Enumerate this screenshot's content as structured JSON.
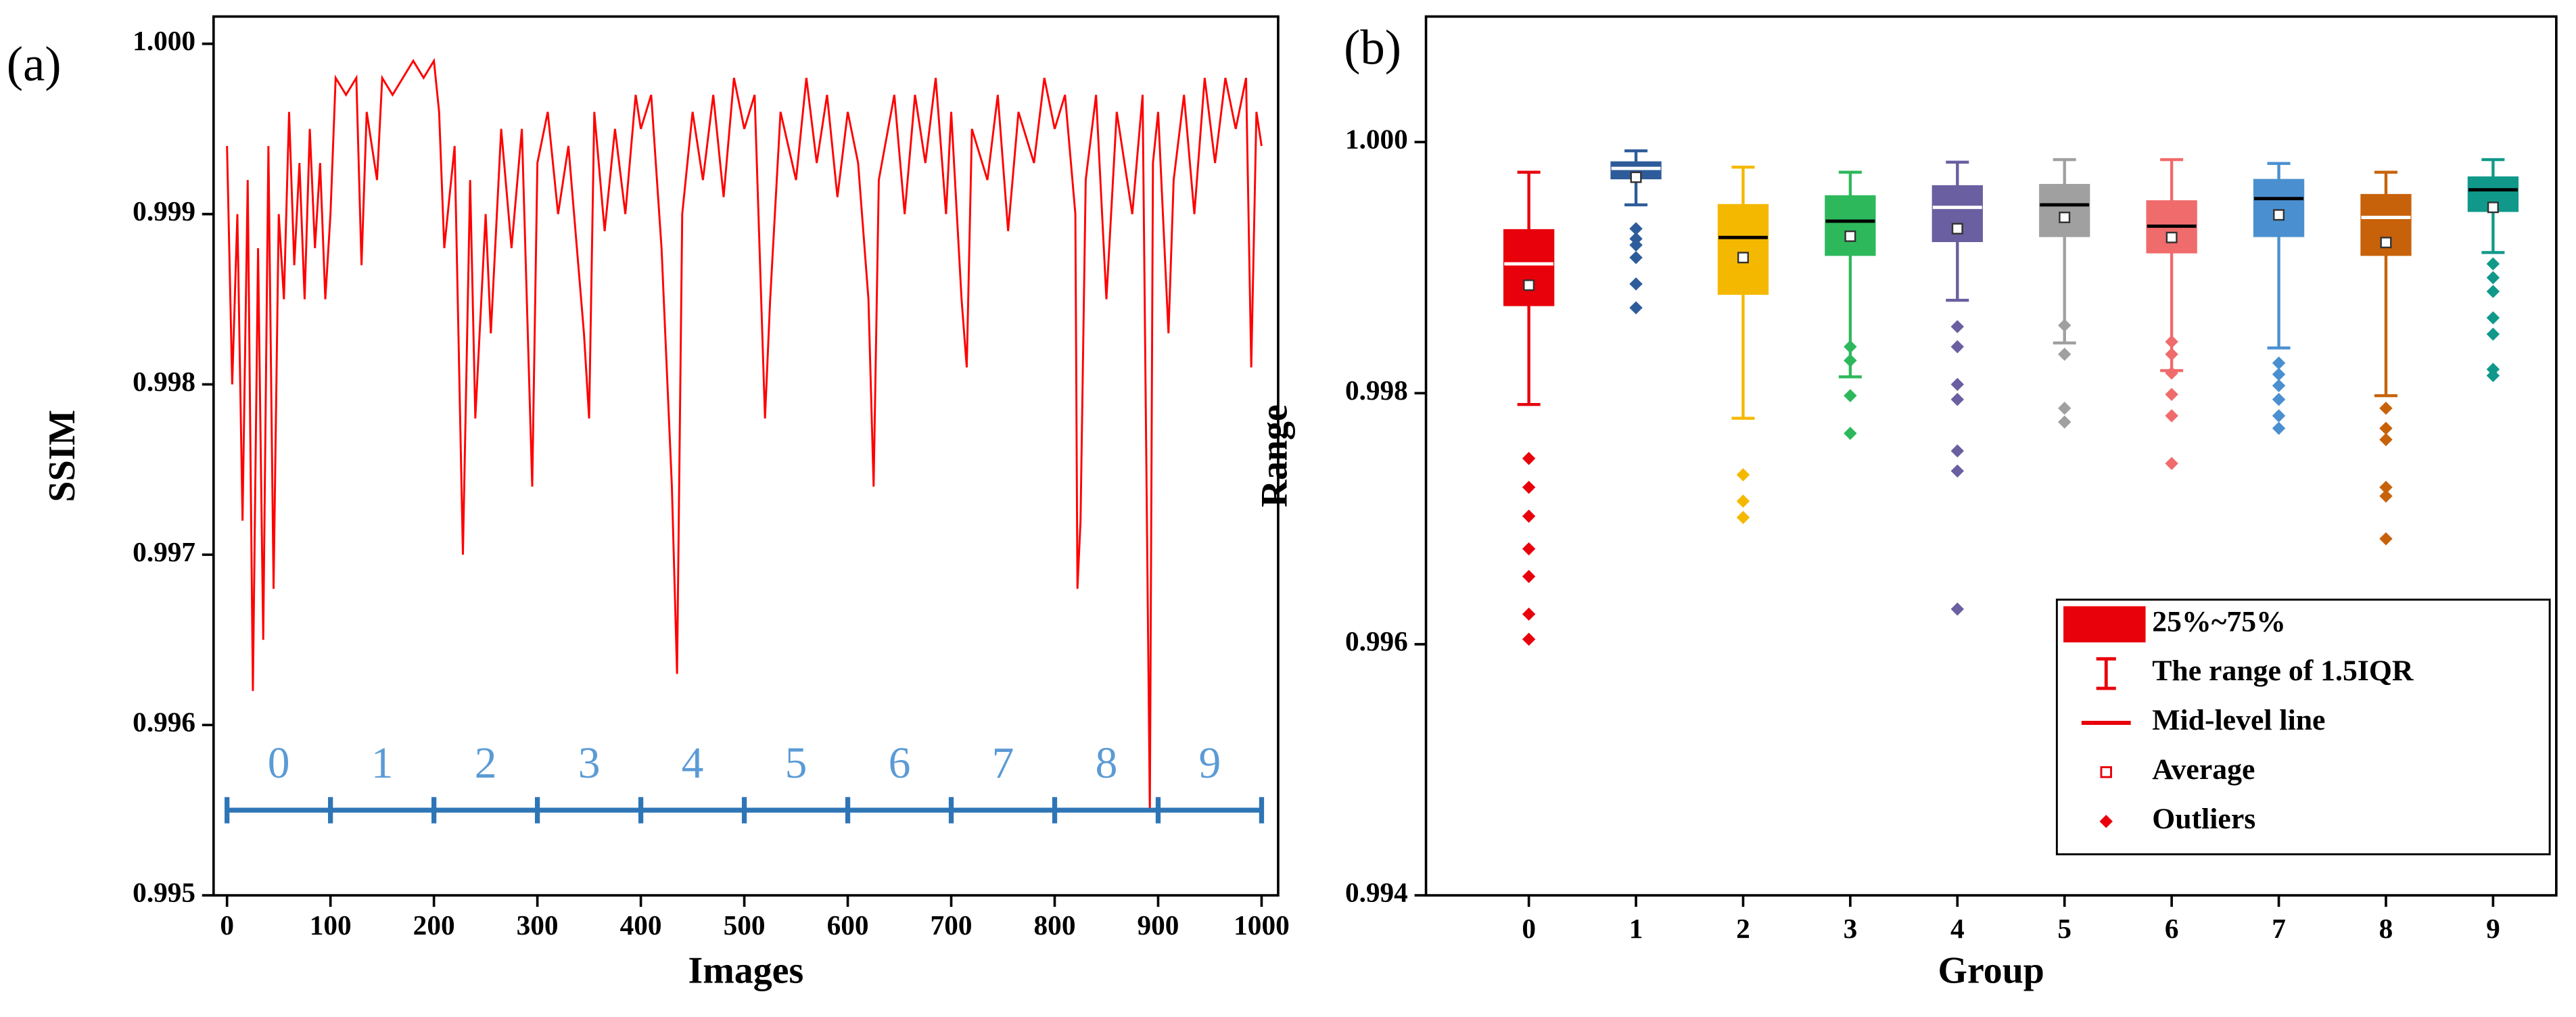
{
  "chart_data": [
    {
      "type": "line",
      "panel": "(a)",
      "x_label": "Images",
      "y_label": "SSIM",
      "color": "#ff0000",
      "x": [
        0,
        5,
        10,
        15,
        20,
        25,
        30,
        35,
        40,
        45,
        50,
        55,
        60,
        65,
        70,
        75,
        80,
        85,
        90,
        95,
        100,
        105,
        115,
        125,
        130,
        135,
        145,
        150,
        160,
        170,
        180,
        190,
        200,
        205,
        210,
        220,
        228,
        235,
        240,
        250,
        255,
        265,
        275,
        285,
        295,
        300,
        310,
        320,
        330,
        345,
        350,
        355,
        365,
        375,
        385,
        395,
        400,
        410,
        420,
        430,
        435,
        440,
        450,
        460,
        470,
        480,
        490,
        500,
        510,
        520,
        525,
        535,
        550,
        560,
        570,
        580,
        590,
        600,
        610,
        620,
        625,
        630,
        645,
        655,
        665,
        675,
        685,
        695,
        700,
        710,
        715,
        720,
        735,
        745,
        755,
        765,
        780,
        790,
        800,
        810,
        820,
        822,
        825,
        830,
        840,
        850,
        860,
        875,
        885,
        892,
        895,
        900,
        910,
        915,
        925,
        935,
        945,
        955,
        965,
        975,
        985,
        990,
        995,
        1000
      ],
      "values": [
        0.9994,
        0.998,
        0.999,
        0.9972,
        0.9992,
        0.9962,
        0.9988,
        0.9965,
        0.9994,
        0.9968,
        0.999,
        0.9985,
        0.9996,
        0.9987,
        0.9993,
        0.9985,
        0.9995,
        0.9988,
        0.9993,
        0.9985,
        0.999,
        0.9998,
        0.9997,
        0.9998,
        0.9987,
        0.9996,
        0.9992,
        0.9998,
        0.9997,
        0.9998,
        0.9999,
        0.9998,
        0.9999,
        0.9996,
        0.9988,
        0.9994,
        0.997,
        0.9992,
        0.9978,
        0.999,
        0.9983,
        0.9995,
        0.9988,
        0.9995,
        0.9974,
        0.9993,
        0.9996,
        0.999,
        0.9994,
        0.9983,
        0.9978,
        0.9996,
        0.9989,
        0.9995,
        0.999,
        0.9997,
        0.9995,
        0.9997,
        0.9988,
        0.9974,
        0.9963,
        0.999,
        0.9996,
        0.9992,
        0.9997,
        0.9991,
        0.9998,
        0.9995,
        0.9997,
        0.9978,
        0.9985,
        0.9996,
        0.9992,
        0.9998,
        0.9993,
        0.9997,
        0.9991,
        0.9996,
        0.9993,
        0.9985,
        0.9974,
        0.9992,
        0.9997,
        0.999,
        0.9997,
        0.9993,
        0.9998,
        0.999,
        0.9996,
        0.9985,
        0.9981,
        0.9995,
        0.9992,
        0.9997,
        0.9989,
        0.9996,
        0.9993,
        0.9998,
        0.9995,
        0.9997,
        0.999,
        0.9968,
        0.9972,
        0.9992,
        0.9997,
        0.9985,
        0.9996,
        0.999,
        0.9997,
        0.9955,
        0.9993,
        0.9996,
        0.9983,
        0.9992,
        0.9997,
        0.999,
        0.9998,
        0.9993,
        0.9998,
        0.9995,
        0.9998,
        0.9981,
        0.9996,
        0.9994
      ],
      "xlim": [
        -13,
        1016
      ],
      "xticks": [
        0,
        100,
        200,
        300,
        400,
        500,
        600,
        700,
        800,
        900,
        1000
      ],
      "ylim": [
        0.995,
        1.00016
      ],
      "yticks": [
        0.995,
        0.996,
        0.997,
        0.998,
        0.999,
        {
          "value": 1,
          "label": "1.000"
        }
      ],
      "group_labels": [
        "0",
        "1",
        "2",
        "3",
        "4",
        "5",
        "6",
        "7",
        "8",
        "9"
      ],
      "group_bounds": [
        0,
        100,
        200,
        300,
        400,
        500,
        600,
        700,
        800,
        900,
        1000
      ],
      "group_axis_y": 0.9955,
      "group_color": "#2e75b6"
    },
    {
      "type": "box",
      "panel": "(b)",
      "x_label": "Group",
      "y_label": "Range",
      "categories": [
        "0",
        "1",
        "2",
        "3",
        "4",
        "5",
        "6",
        "7",
        "8",
        "9"
      ],
      "ylim": [
        0.994,
        1.001
      ],
      "yticks": [
        0.994,
        0.996,
        0.998,
        {
          "value": 1,
          "label": "1.000"
        }
      ],
      "boxes": [
        {
          "color": "#e8000b",
          "median_color": "#ffffff",
          "whisker_low": 0.99791,
          "q1": 0.9987,
          "median": 0.99903,
          "q3": 0.9993,
          "whisker_high": 0.99976,
          "mean": 0.99886,
          "outliers": [
            0.99604,
            0.99624,
            0.99654,
            0.99676,
            0.99702,
            0.99725,
            0.99748
          ]
        },
        {
          "color": "#2e5c9a",
          "median_color": "#ffffff",
          "whisker_low": 0.9995,
          "q1": 0.99971,
          "median": 0.99979,
          "q3": 0.99984,
          "whisker_high": 0.99993,
          "mean": 0.99972,
          "outliers": [
            0.99931,
            0.99923,
            0.99918,
            0.99908,
            0.99887,
            0.99868
          ]
        },
        {
          "color": "#f5b800",
          "median_color": "#000000",
          "whisker_low": 0.9978,
          "q1": 0.99879,
          "median": 0.99924,
          "q3": 0.9995,
          "whisker_high": 0.9998,
          "mean": 0.99908,
          "outliers": [
            0.99735,
            0.99714,
            0.99701
          ]
        },
        {
          "color": "#2eb85c",
          "median_color": "#000000",
          "whisker_low": 0.99813,
          "q1": 0.9991,
          "median": 0.99937,
          "q3": 0.99957,
          "whisker_high": 0.99976,
          "mean": 0.99925,
          "outliers": [
            0.99837,
            0.99826,
            0.99798,
            0.99768
          ]
        },
        {
          "color": "#6a5fa0",
          "median_color": "#ffffff",
          "whisker_low": 0.99874,
          "q1": 0.99921,
          "median": 0.99948,
          "q3": 0.99965,
          "whisker_high": 0.99984,
          "mean": 0.99931,
          "outliers": [
            0.99853,
            0.99837,
            0.99807,
            0.99795,
            0.99754,
            0.99738,
            0.99628
          ]
        },
        {
          "color": "#a0a0a0",
          "median_color": "#000000",
          "whisker_low": 0.9984,
          "q1": 0.99925,
          "median": 0.9995,
          "q3": 0.99966,
          "whisker_high": 0.99986,
          "mean": 0.9994,
          "outliers": [
            0.99854,
            0.99831,
            0.99788,
            0.99777
          ]
        },
        {
          "color": "#f06b6b",
          "median_color": "#000000",
          "whisker_low": 0.99818,
          "q1": 0.99912,
          "median": 0.99933,
          "q3": 0.99953,
          "whisker_high": 0.99986,
          "mean": 0.99924,
          "outliers": [
            0.99841,
            0.99831,
            0.99816,
            0.99799,
            0.99782,
            0.99744
          ]
        },
        {
          "color": "#4a90d0",
          "median_color": "#000000",
          "whisker_low": 0.99836,
          "q1": 0.99925,
          "median": 0.99955,
          "q3": 0.9997,
          "whisker_high": 0.99983,
          "mean": 0.99942,
          "outliers": [
            0.99824,
            0.99815,
            0.99806,
            0.99795,
            0.99782,
            0.99772
          ]
        },
        {
          "color": "#c8620a",
          "median_color": "#ffffff",
          "whisker_low": 0.99798,
          "q1": 0.9991,
          "median": 0.9994,
          "q3": 0.99958,
          "whisker_high": 0.99976,
          "mean": 0.9992,
          "outliers": [
            0.99788,
            0.99772,
            0.99763,
            0.99725,
            0.99718,
            0.99684
          ]
        },
        {
          "color": "#10998a",
          "median_color": "#000000",
          "whisker_low": 0.99912,
          "q1": 0.99945,
          "median": 0.99962,
          "q3": 0.99972,
          "whisker_high": 0.99986,
          "mean": 0.99948,
          "outliers": [
            0.99903,
            0.99892,
            0.99881,
            0.9986,
            0.99847,
            0.99819,
            0.99814
          ]
        }
      ],
      "legend": {
        "position": "lower right",
        "color": "#e8000b",
        "entries": [
          "25%~75%",
          "The range of 1.5IQR",
          "Mid-level line",
          "Average",
          "Outliers"
        ]
      }
    }
  ]
}
